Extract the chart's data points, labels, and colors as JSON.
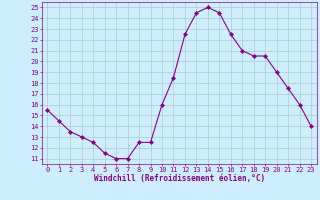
{
  "x": [
    0,
    1,
    2,
    3,
    4,
    5,
    6,
    7,
    8,
    9,
    10,
    11,
    12,
    13,
    14,
    15,
    16,
    17,
    18,
    19,
    20,
    21,
    22,
    23
  ],
  "y": [
    15.5,
    14.5,
    13.5,
    13.0,
    12.5,
    11.5,
    11.0,
    11.0,
    12.5,
    12.5,
    16.0,
    18.5,
    22.5,
    24.5,
    25.0,
    24.5,
    22.5,
    21.0,
    20.5,
    20.5,
    19.0,
    17.5,
    16.0,
    14.0
  ],
  "line_color": "#880088",
  "marker": "D",
  "marker_size": 2.0,
  "bg_color": "#cceeff",
  "grid_color": "#aacccc",
  "xlabel": "Windchill (Refroidissement éolien,°C)",
  "ylabel_ticks": [
    11,
    12,
    13,
    14,
    15,
    16,
    17,
    18,
    19,
    20,
    21,
    22,
    23,
    24,
    25
  ],
  "xlim": [
    -0.5,
    23.5
  ],
  "ylim": [
    10.5,
    25.5
  ],
  "xticks": [
    0,
    1,
    2,
    3,
    4,
    5,
    6,
    7,
    8,
    9,
    10,
    11,
    12,
    13,
    14,
    15,
    16,
    17,
    18,
    19,
    20,
    21,
    22,
    23
  ],
  "tick_label_color": "#880088",
  "xlabel_color": "#880088",
  "tick_fontsize": 5.0,
  "xlabel_fontsize": 5.5
}
